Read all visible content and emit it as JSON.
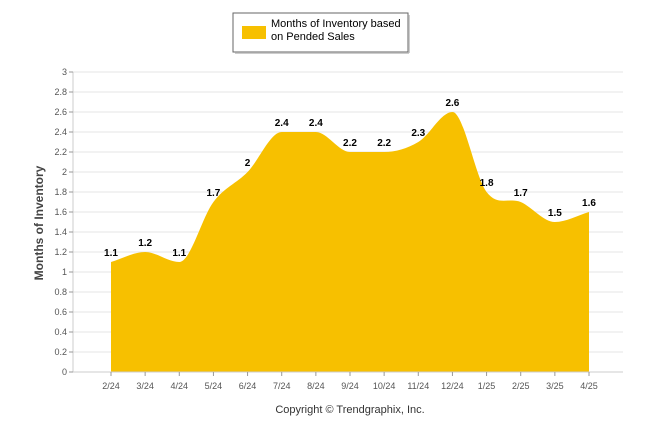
{
  "chart_data": {
    "type": "area",
    "categories": [
      "2/24",
      "3/24",
      "4/24",
      "5/24",
      "6/24",
      "7/24",
      "8/24",
      "9/24",
      "10/24",
      "11/24",
      "12/24",
      "1/25",
      "2/25",
      "3/25",
      "4/25"
    ],
    "series": [
      {
        "name": "Months of Inventory based on Pended Sales",
        "legend_lines": [
          "Months of Inventory based",
          "on Pended Sales"
        ],
        "values": [
          1.1,
          1.2,
          1.1,
          1.7,
          2.0,
          2.4,
          2.4,
          2.2,
          2.2,
          2.3,
          2.6,
          1.8,
          1.7,
          1.5,
          1.6
        ],
        "labels": [
          "1.1",
          "1.2",
          "1.1",
          "1.7",
          "2",
          "2.4",
          "2.4",
          "2.2",
          "2.2",
          "2.3",
          "2.6",
          "1.8",
          "1.7",
          "1.5",
          "1.6"
        ],
        "color": "#f7c000"
      }
    ],
    "ylabel": "Months of Inventory",
    "xlabel": "",
    "ylim": [
      0,
      3
    ],
    "yticks": [
      {
        "v": 0,
        "t": "0"
      },
      {
        "v": 0.2,
        "t": "0.2"
      },
      {
        "v": 0.4,
        "t": "0.4"
      },
      {
        "v": 0.6,
        "t": "0.6"
      },
      {
        "v": 0.8,
        "t": "0.8"
      },
      {
        "v": 1.0,
        "t": "1"
      },
      {
        "v": 1.2,
        "t": "1.2"
      },
      {
        "v": 1.4,
        "t": "1.4"
      },
      {
        "v": 1.6,
        "t": "1.6"
      },
      {
        "v": 1.8,
        "t": "1.8"
      },
      {
        "v": 2.0,
        "t": "2"
      },
      {
        "v": 2.2,
        "t": "2.2"
      },
      {
        "v": 2.4,
        "t": "2.4"
      },
      {
        "v": 2.6,
        "t": "2.6"
      },
      {
        "v": 2.8,
        "t": "2.8"
      },
      {
        "v": 3.0,
        "t": "3"
      }
    ],
    "grid": true,
    "legend_position": "top-center"
  },
  "footer": {
    "copyright": "Copyright © Trendgraphix, Inc."
  }
}
